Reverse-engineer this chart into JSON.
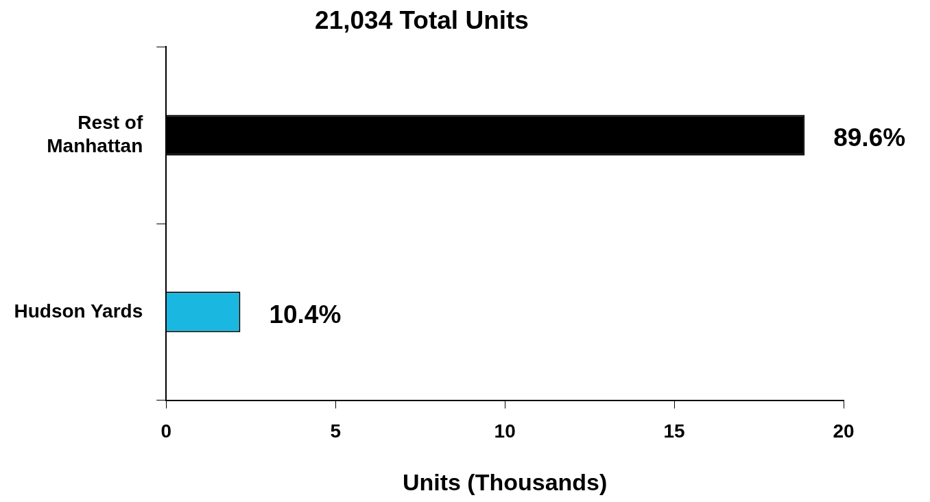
{
  "chart_data": {
    "type": "bar",
    "orientation": "horizontal",
    "title": "21,034 Total Units",
    "xlabel": "Units (Thousands)",
    "categories": [
      "Rest of Manhattan",
      "Hudson Yards"
    ],
    "values": [
      18.85,
      2.19
    ],
    "colors": [
      "#000000",
      "#1ab8e0"
    ],
    "annotations": [
      {
        "text": "89.6%",
        "x": 18.85,
        "y": "Rest of Manhattan"
      },
      {
        "text": "10.4%",
        "x": 2.19,
        "y": "Hudson Yards"
      }
    ],
    "xlim": [
      0,
      20
    ],
    "xticks": [
      0,
      5,
      10,
      15,
      20
    ],
    "grid": false,
    "legend": false
  }
}
